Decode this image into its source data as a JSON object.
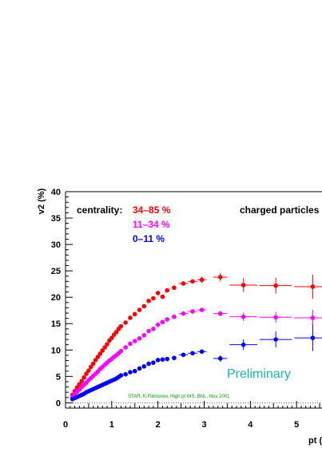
{
  "chart_data": {
    "type": "scatter",
    "title": "",
    "xlabel": "pt (",
    "ylabel": "v2 (%)",
    "xlim": [
      0,
      5.55
    ],
    "ylim": [
      -1,
      40
    ],
    "x_ticks": [
      0,
      1,
      2,
      3,
      4,
      5
    ],
    "x_tick_labels": [
      "0",
      "1",
      "2",
      "3",
      "4",
      "5"
    ],
    "y_ticks": [
      0,
      5,
      10,
      15,
      20,
      25,
      30,
      35,
      40
    ],
    "y_tick_labels": [
      "0",
      "5",
      "10",
      "15",
      "20",
      "25",
      "30",
      "35",
      "40"
    ],
    "grid": false,
    "legend_title": "centrality:",
    "top_right_label": "charged particles",
    "preliminary_label": "Preliminary",
    "credit": "STAR, K.Filimonov, High pt WS, BNL, Nov 2001",
    "series": [
      {
        "name": "34–85 %",
        "color": "#ff0000",
        "points": [
          [
            0.15,
            1.5
          ],
          [
            0.2,
            2.2
          ],
          [
            0.25,
            2.9
          ],
          [
            0.3,
            3.5
          ],
          [
            0.35,
            4.1
          ],
          [
            0.4,
            4.8
          ],
          [
            0.45,
            5.5
          ],
          [
            0.5,
            6.1
          ],
          [
            0.55,
            6.8
          ],
          [
            0.6,
            7.4
          ],
          [
            0.65,
            8.1
          ],
          [
            0.7,
            8.7
          ],
          [
            0.75,
            9.3
          ],
          [
            0.8,
            9.9
          ],
          [
            0.85,
            10.5
          ],
          [
            0.9,
            11.1
          ],
          [
            0.95,
            11.8
          ],
          [
            1.0,
            12.3
          ],
          [
            1.05,
            12.9
          ],
          [
            1.1,
            13.4
          ],
          [
            1.15,
            14.0
          ],
          [
            1.2,
            14.5
          ],
          [
            1.3,
            15.2
          ],
          [
            1.4,
            16.1
          ],
          [
            1.5,
            16.8
          ],
          [
            1.6,
            17.6
          ],
          [
            1.7,
            18.3
          ],
          [
            1.8,
            19.3
          ],
          [
            1.9,
            19.8
          ],
          [
            2.0,
            20.8
          ],
          [
            2.1,
            20.1
          ],
          [
            2.2,
            21.3
          ],
          [
            2.35,
            21.8
          ],
          [
            2.55,
            22.6
          ],
          [
            2.75,
            23.0
          ],
          [
            2.95,
            23.3
          ],
          [
            3.35,
            23.8
          ],
          [
            3.85,
            22.3
          ],
          [
            4.55,
            22.2
          ],
          [
            5.35,
            22.0
          ]
        ],
        "x_errors": [
          0,
          0,
          0,
          0,
          0,
          0,
          0,
          0,
          0,
          0,
          0,
          0,
          0,
          0,
          0,
          0,
          0,
          0,
          0,
          0,
          0,
          0,
          0,
          0,
          0,
          0,
          0,
          0,
          0,
          0,
          0,
          0,
          0.05,
          0.1,
          0.1,
          0.1,
          0.15,
          0.3,
          0.35,
          0.4
        ],
        "y_errors": [
          0,
          0,
          0,
          0,
          0,
          0,
          0,
          0,
          0,
          0,
          0,
          0,
          0,
          0,
          0,
          0,
          0,
          0,
          0,
          0,
          0,
          0,
          0,
          0,
          0,
          0,
          0,
          0,
          0,
          0,
          0,
          0,
          0,
          0.4,
          0.4,
          0.6,
          0.8,
          1.3,
          1.5,
          2.3
        ]
      },
      {
        "name": "11–34 %",
        "color": "#ff00ff",
        "points": [
          [
            0.15,
            1.2
          ],
          [
            0.2,
            1.6
          ],
          [
            0.25,
            2.1
          ],
          [
            0.3,
            2.5
          ],
          [
            0.35,
            3.0
          ],
          [
            0.4,
            3.4
          ],
          [
            0.45,
            3.8
          ],
          [
            0.5,
            4.3
          ],
          [
            0.55,
            4.7
          ],
          [
            0.6,
            5.1
          ],
          [
            0.65,
            5.5
          ],
          [
            0.7,
            5.9
          ],
          [
            0.75,
            6.4
          ],
          [
            0.8,
            6.8
          ],
          [
            0.85,
            7.2
          ],
          [
            0.9,
            7.6
          ],
          [
            0.95,
            8.0
          ],
          [
            1.0,
            8.3
          ],
          [
            1.05,
            8.7
          ],
          [
            1.1,
            9.0
          ],
          [
            1.15,
            9.4
          ],
          [
            1.2,
            9.8
          ],
          [
            1.3,
            10.5
          ],
          [
            1.4,
            11.2
          ],
          [
            1.5,
            11.7
          ],
          [
            1.6,
            12.2
          ],
          [
            1.7,
            12.8
          ],
          [
            1.8,
            13.6
          ],
          [
            1.9,
            14.0
          ],
          [
            2.0,
            14.8
          ],
          [
            2.1,
            15.3
          ],
          [
            2.2,
            15.8
          ],
          [
            2.35,
            16.3
          ],
          [
            2.55,
            16.9
          ],
          [
            2.75,
            17.3
          ],
          [
            2.95,
            17.6
          ],
          [
            3.35,
            16.9
          ],
          [
            3.85,
            16.3
          ],
          [
            4.55,
            16.2
          ],
          [
            5.35,
            16.1
          ]
        ],
        "x_errors": [
          0,
          0,
          0,
          0,
          0,
          0,
          0,
          0,
          0,
          0,
          0,
          0,
          0,
          0,
          0,
          0,
          0,
          0,
          0,
          0,
          0,
          0,
          0,
          0,
          0,
          0,
          0,
          0,
          0,
          0,
          0,
          0,
          0.05,
          0.1,
          0.1,
          0.1,
          0.15,
          0.3,
          0.35,
          0.4
        ],
        "y_errors": [
          0,
          0,
          0,
          0,
          0,
          0,
          0,
          0,
          0,
          0,
          0,
          0,
          0,
          0,
          0,
          0,
          0,
          0,
          0,
          0,
          0,
          0,
          0,
          0,
          0,
          0,
          0,
          0,
          0,
          0,
          0,
          0,
          0,
          0.3,
          0.3,
          0.4,
          0.5,
          0.8,
          1.0,
          1.5
        ]
      },
      {
        "name": "0–11 %",
        "color": "#0000ff",
        "points": [
          [
            0.15,
            0.7
          ],
          [
            0.2,
            0.9
          ],
          [
            0.25,
            1.1
          ],
          [
            0.3,
            1.3
          ],
          [
            0.35,
            1.5
          ],
          [
            0.4,
            1.7
          ],
          [
            0.45,
            2.0
          ],
          [
            0.5,
            2.2
          ],
          [
            0.55,
            2.4
          ],
          [
            0.6,
            2.6
          ],
          [
            0.65,
            2.8
          ],
          [
            0.7,
            3.0
          ],
          [
            0.75,
            3.2
          ],
          [
            0.8,
            3.4
          ],
          [
            0.85,
            3.6
          ],
          [
            0.9,
            3.8
          ],
          [
            0.95,
            4.0
          ],
          [
            1.0,
            4.2
          ],
          [
            1.05,
            4.4
          ],
          [
            1.1,
            4.6
          ],
          [
            1.15,
            4.9
          ],
          [
            1.2,
            5.2
          ],
          [
            1.3,
            5.4
          ],
          [
            1.4,
            5.8
          ],
          [
            1.5,
            6.0
          ],
          [
            1.6,
            6.5
          ],
          [
            1.7,
            6.9
          ],
          [
            1.8,
            7.4
          ],
          [
            1.9,
            7.6
          ],
          [
            2.0,
            8.1
          ],
          [
            2.1,
            8.2
          ],
          [
            2.2,
            8.3
          ],
          [
            2.35,
            8.5
          ],
          [
            2.55,
            9.1
          ],
          [
            2.75,
            9.4
          ],
          [
            2.95,
            9.7
          ],
          [
            3.35,
            8.4
          ],
          [
            3.85,
            11.0
          ],
          [
            4.55,
            12.0
          ],
          [
            5.35,
            12.3
          ]
        ],
        "x_errors": [
          0,
          0,
          0,
          0,
          0,
          0,
          0,
          0,
          0,
          0,
          0,
          0,
          0,
          0,
          0,
          0,
          0,
          0,
          0,
          0,
          0,
          0,
          0,
          0,
          0,
          0,
          0,
          0,
          0,
          0,
          0,
          0,
          0.05,
          0.1,
          0.1,
          0.1,
          0.15,
          0.3,
          0.35,
          0.4
        ],
        "y_errors": [
          0,
          0,
          0,
          0,
          0,
          0,
          0,
          0,
          0,
          0,
          0,
          0,
          0,
          0,
          0,
          0,
          0,
          0,
          0,
          0,
          0,
          0,
          0,
          0,
          0,
          0,
          0,
          0,
          0,
          0,
          0,
          0,
          0,
          0.3,
          0.3,
          0.4,
          0.6,
          1.0,
          1.5,
          2.5
        ]
      }
    ],
    "colors": {
      "axis": "#000000",
      "preliminary": "#17b8a4",
      "credit": "#00a000",
      "zero_line": "#000000"
    }
  }
}
